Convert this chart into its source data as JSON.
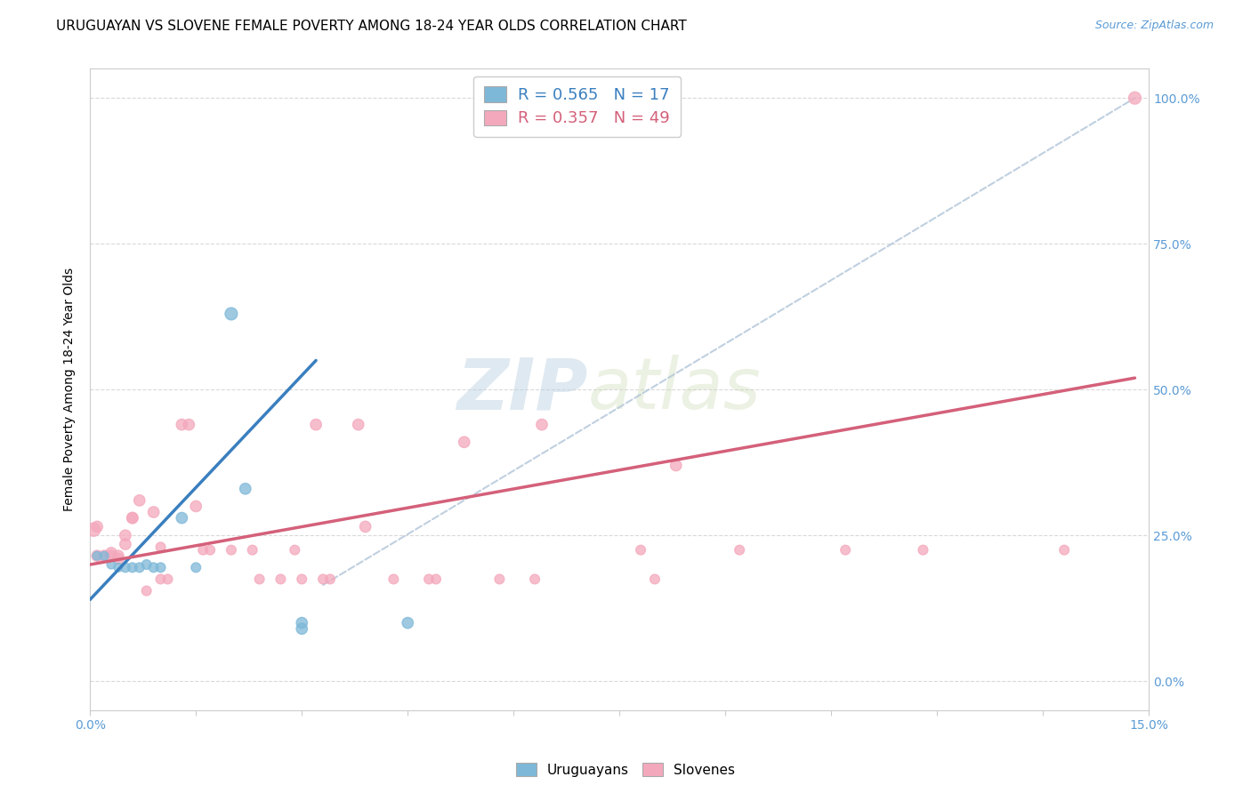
{
  "title": "URUGUAYAN VS SLOVENE FEMALE POVERTY AMONG 18-24 YEAR OLDS CORRELATION CHART",
  "source": "Source: ZipAtlas.com",
  "xlim": [
    0.0,
    0.15
  ],
  "ylim": [
    -0.05,
    1.05
  ],
  "ylabel": "Female Poverty Among 18-24 Year Olds",
  "watermark_zip": "ZIP",
  "watermark_atlas": "atlas",
  "legend_blue_R": "R = 0.565",
  "legend_blue_N": "N = 17",
  "legend_pink_R": "R = 0.357",
  "legend_pink_N": "N = 49",
  "blue_color": "#7eb8d8",
  "blue_color_dark": "#3a7fbf",
  "pink_color": "#f4a8bc",
  "pink_color_dark": "#d4607a",
  "blue_label": "Uruguayans",
  "pink_label": "Slovenes",
  "blue_scatter": [
    [
      0.001,
      0.215
    ],
    [
      0.002,
      0.215
    ],
    [
      0.003,
      0.2
    ],
    [
      0.004,
      0.195
    ],
    [
      0.005,
      0.195
    ],
    [
      0.006,
      0.195
    ],
    [
      0.007,
      0.195
    ],
    [
      0.008,
      0.2
    ],
    [
      0.009,
      0.195
    ],
    [
      0.01,
      0.195
    ],
    [
      0.013,
      0.28
    ],
    [
      0.015,
      0.195
    ],
    [
      0.02,
      0.63
    ],
    [
      0.022,
      0.33
    ],
    [
      0.03,
      0.1
    ],
    [
      0.03,
      0.09
    ],
    [
      0.045,
      0.1
    ]
  ],
  "blue_scatter_sizes": [
    50,
    50,
    50,
    50,
    60,
    60,
    60,
    60,
    60,
    60,
    80,
    60,
    100,
    80,
    80,
    80,
    80
  ],
  "pink_scatter": [
    [
      0.0005,
      0.26
    ],
    [
      0.001,
      0.265
    ],
    [
      0.001,
      0.215
    ],
    [
      0.002,
      0.215
    ],
    [
      0.003,
      0.215
    ],
    [
      0.003,
      0.22
    ],
    [
      0.004,
      0.215
    ],
    [
      0.004,
      0.21
    ],
    [
      0.005,
      0.25
    ],
    [
      0.005,
      0.235
    ],
    [
      0.006,
      0.28
    ],
    [
      0.006,
      0.28
    ],
    [
      0.007,
      0.31
    ],
    [
      0.008,
      0.155
    ],
    [
      0.009,
      0.29
    ],
    [
      0.01,
      0.175
    ],
    [
      0.01,
      0.23
    ],
    [
      0.011,
      0.175
    ],
    [
      0.013,
      0.44
    ],
    [
      0.014,
      0.44
    ],
    [
      0.015,
      0.3
    ],
    [
      0.016,
      0.225
    ],
    [
      0.017,
      0.225
    ],
    [
      0.02,
      0.225
    ],
    [
      0.023,
      0.225
    ],
    [
      0.024,
      0.175
    ],
    [
      0.027,
      0.175
    ],
    [
      0.029,
      0.225
    ],
    [
      0.03,
      0.175
    ],
    [
      0.032,
      0.44
    ],
    [
      0.033,
      0.175
    ],
    [
      0.034,
      0.175
    ],
    [
      0.038,
      0.44
    ],
    [
      0.039,
      0.265
    ],
    [
      0.043,
      0.175
    ],
    [
      0.048,
      0.175
    ],
    [
      0.049,
      0.175
    ],
    [
      0.053,
      0.41
    ],
    [
      0.058,
      0.175
    ],
    [
      0.063,
      0.175
    ],
    [
      0.064,
      0.44
    ],
    [
      0.078,
      0.225
    ],
    [
      0.08,
      0.175
    ],
    [
      0.083,
      0.37
    ],
    [
      0.092,
      0.225
    ],
    [
      0.107,
      0.225
    ],
    [
      0.118,
      0.225
    ],
    [
      0.138,
      0.225
    ],
    [
      0.148,
      1.0
    ]
  ],
  "pink_scatter_sizes": [
    120,
    80,
    80,
    80,
    80,
    80,
    80,
    80,
    80,
    80,
    80,
    80,
    80,
    60,
    80,
    60,
    60,
    60,
    80,
    80,
    80,
    60,
    60,
    60,
    60,
    60,
    60,
    60,
    60,
    80,
    60,
    60,
    80,
    80,
    60,
    60,
    60,
    80,
    60,
    60,
    80,
    60,
    60,
    80,
    60,
    60,
    60,
    60,
    100
  ],
  "blue_line_x": [
    0.0,
    0.032
  ],
  "blue_line_y": [
    0.14,
    0.55
  ],
  "pink_line_x": [
    0.0,
    0.148
  ],
  "pink_line_y": [
    0.2,
    0.52
  ],
  "diag_line_x": [
    0.033,
    0.148
  ],
  "diag_line_y": [
    0.165,
    1.0
  ],
  "ytick_right_color": "#5b9bd5",
  "xtick_color": "#5b9bd5",
  "title_fontsize": 11,
  "axis_tick_fontsize": 10,
  "grid_color": "#d0d0d0",
  "spine_color": "#cccccc"
}
